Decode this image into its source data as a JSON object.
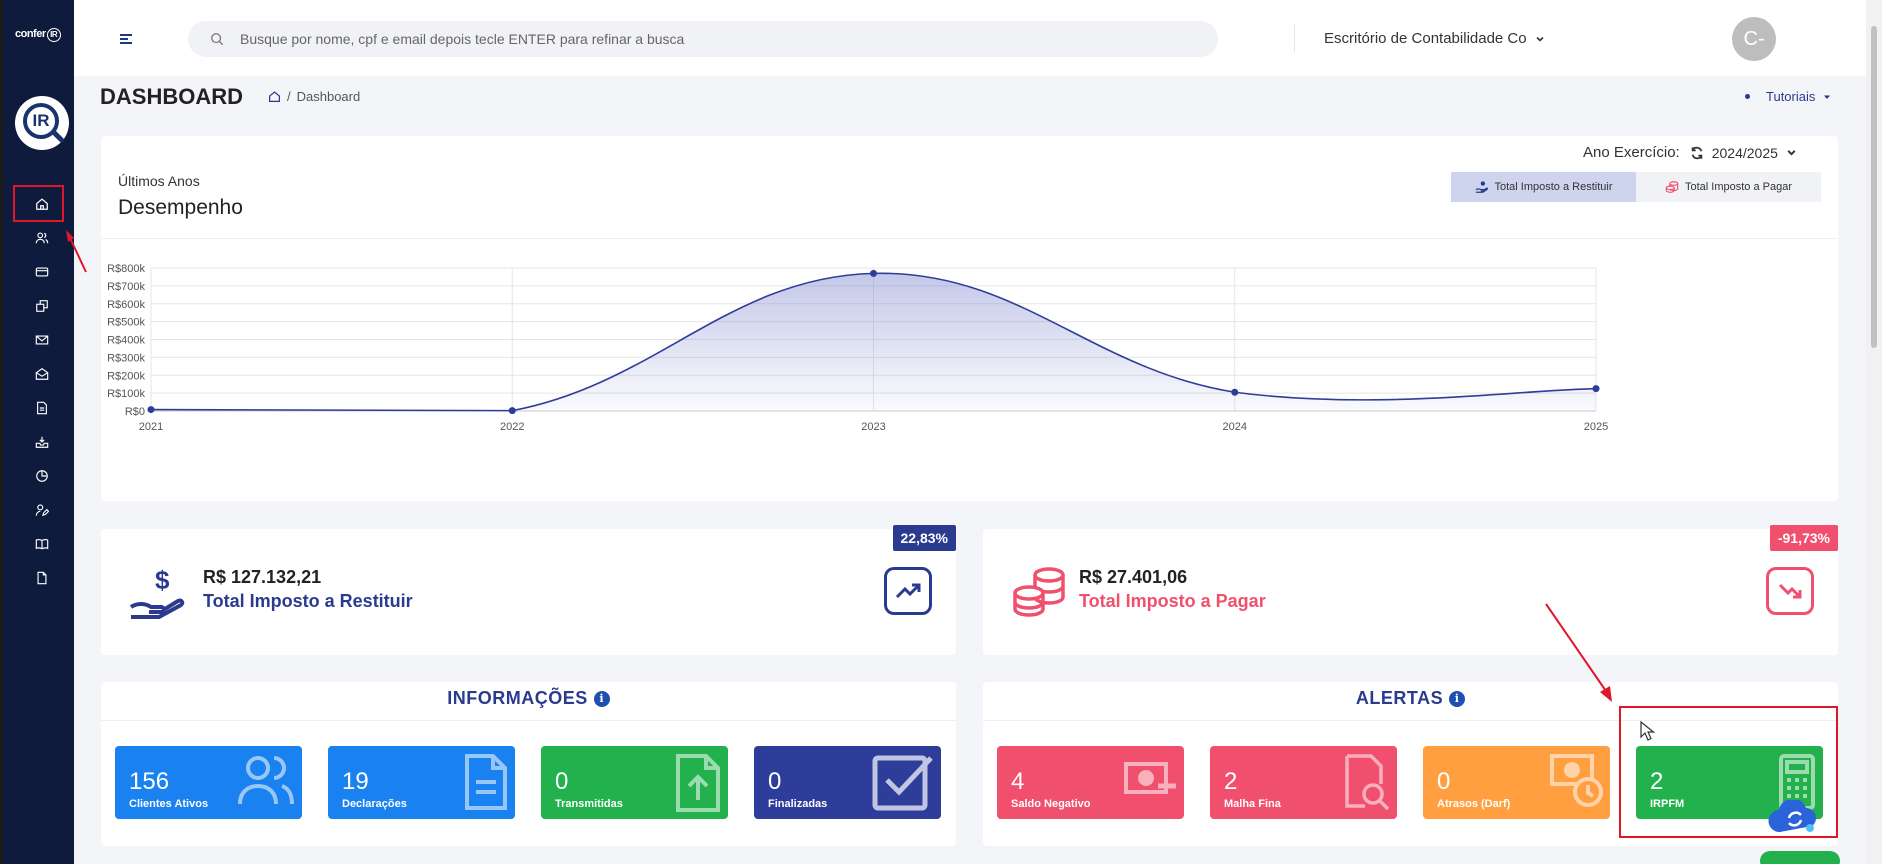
{
  "sidebar": {
    "logo_text": "conferIR",
    "brand_text": "IR",
    "items": [
      {
        "icon": "home-icon"
      },
      {
        "icon": "users-icon"
      },
      {
        "icon": "card-icon"
      },
      {
        "icon": "files-icon"
      },
      {
        "icon": "mail-icon"
      },
      {
        "icon": "mail-open-icon"
      },
      {
        "icon": "document-icon"
      },
      {
        "icon": "inbox-icon"
      },
      {
        "icon": "pie-chart-icon"
      },
      {
        "icon": "user-edit-icon"
      },
      {
        "icon": "book-icon"
      },
      {
        "icon": "file-icon"
      }
    ]
  },
  "header": {
    "search_placeholder": "Busque por nome, cpf e email depois tecle ENTER para refinar a busca",
    "office": "Escritório de Contabilidade Co",
    "avatar": "C-"
  },
  "page": {
    "title": "DASHBOARD",
    "breadcrumb": "Dashboard",
    "tutoriais": "Tutoriais"
  },
  "chart_card": {
    "subtitle": "Últimos Anos",
    "title": "Desempenho",
    "ano_label": "Ano Exercício:",
    "ano_value": "2024/2025",
    "tabs": [
      {
        "label": "Total Imposto a Restituir",
        "active": true
      },
      {
        "label": "Total Imposto a Pagar",
        "active": false
      }
    ]
  },
  "chart_data": {
    "type": "area",
    "x": [
      "2021",
      "2022",
      "2023",
      "2024",
      "2025"
    ],
    "series": [
      {
        "values": [
          8000,
          2000,
          770000,
          105000,
          125000
        ]
      }
    ],
    "y_ticks": [
      "R$0",
      "R$100k",
      "R$200k",
      "R$300k",
      "R$400k",
      "R$500k",
      "R$600k",
      "R$700k",
      "R$800k"
    ],
    "ylim": [
      0,
      800000
    ],
    "color": "#2f3d9a",
    "grid": true
  },
  "stats": {
    "restituir": {
      "amount": "R$ 127.132,21",
      "label": "Total Imposto a Restituir",
      "pct": "22,83%",
      "color": "#2a3b8f"
    },
    "pagar": {
      "amount": "R$ 27.401,06",
      "label": "Total Imposto a Pagar",
      "pct": "-91,73%",
      "color": "#f0506e"
    }
  },
  "informacoes": {
    "title": "INFORMAÇÕES",
    "tiles": [
      {
        "num": "156",
        "label": "Clientes Ativos",
        "color": "#1a82f0"
      },
      {
        "num": "19",
        "label": "Declarações",
        "color": "#1a82f0"
      },
      {
        "num": "0",
        "label": "Transmitidas",
        "color": "#22b14c"
      },
      {
        "num": "0",
        "label": "Finalizadas",
        "color": "#2f3d9a"
      }
    ]
  },
  "alertas": {
    "title": "ALERTAS",
    "tiles": [
      {
        "num": "4",
        "label": "Saldo Negativo",
        "color": "#f0506e"
      },
      {
        "num": "2",
        "label": "Malha Fina",
        "color": "#f0506e"
      },
      {
        "num": "0",
        "label": "Atrasos (Darf)",
        "color": "#ff9f40"
      },
      {
        "num": "2",
        "label": "IRPFM",
        "color": "#22b14c"
      }
    ]
  },
  "info_glyph": "i"
}
